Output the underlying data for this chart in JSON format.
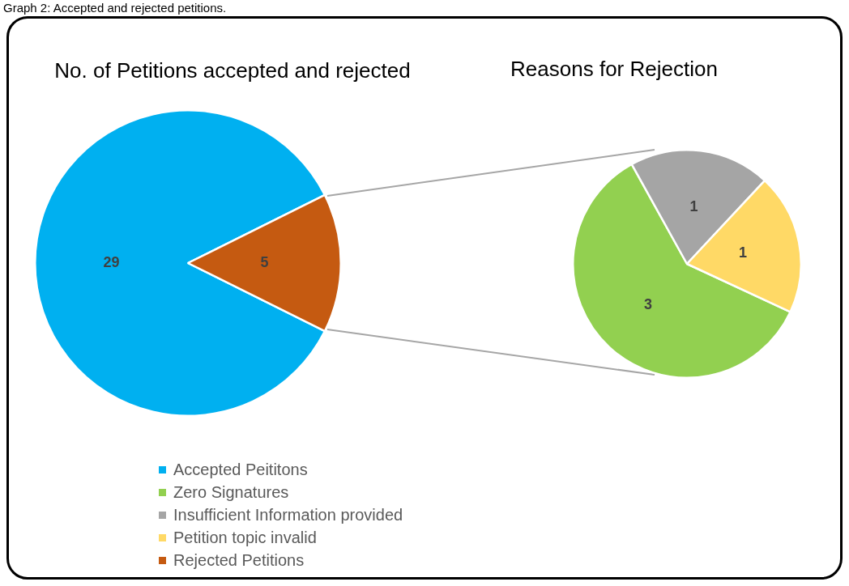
{
  "chart_data": [
    {
      "type": "pie",
      "title": "No. of Petitions accepted and rejected",
      "categories": [
        "Accepted Peititons",
        "Rejected Petitions"
      ],
      "values": [
        29,
        5
      ],
      "colors": [
        "#00b0f0",
        "#c55a11"
      ],
      "data_labels": true,
      "legend": "bottom",
      "annotations": [
        "Graph 2: Accepted and rejected petitions."
      ]
    },
    {
      "type": "pie",
      "title": "Reasons for Rejection",
      "categories": [
        "Zero Signatures",
        "Insufficient Information provided",
        "Petition topic invalid"
      ],
      "values": [
        3,
        1,
        1
      ],
      "colors": [
        "#92d050",
        "#a5a5a5",
        "#ffd966"
      ],
      "data_labels": true,
      "legend": "bottom"
    }
  ]
}
